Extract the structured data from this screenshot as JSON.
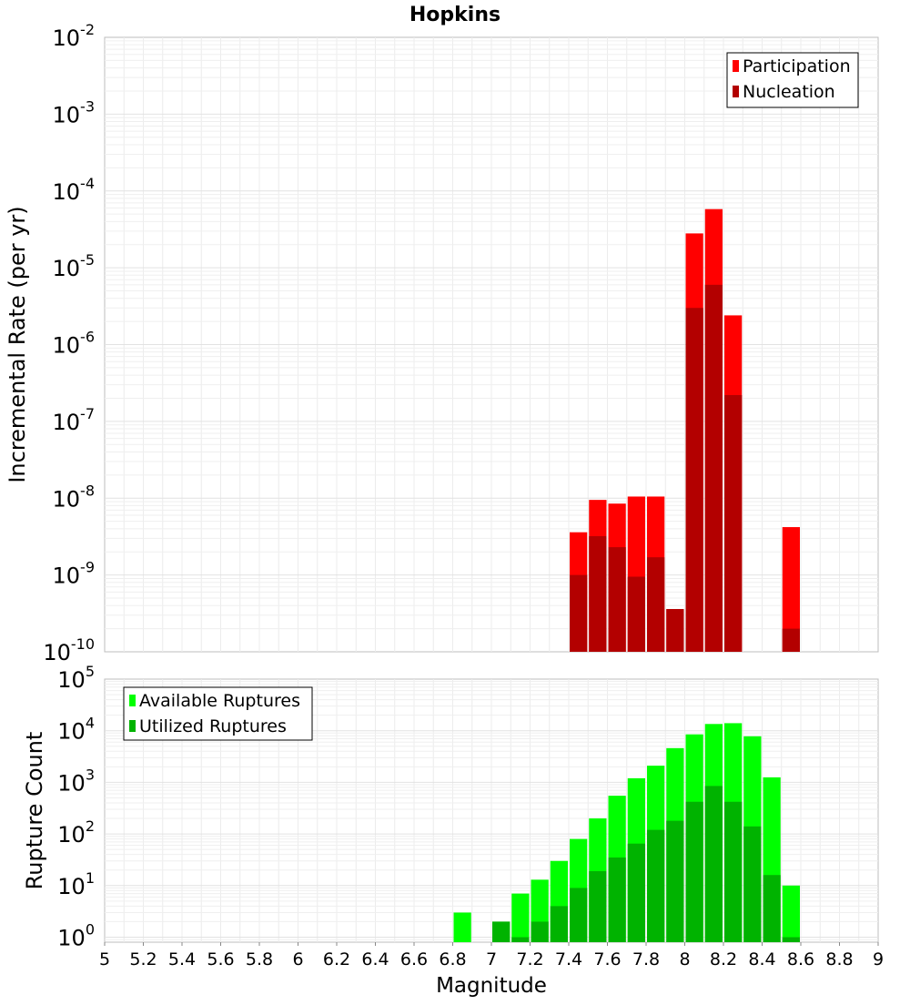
{
  "chart_data": [
    {
      "type": "bar",
      "title": "Hopkins",
      "ylabel": "Incremental Rate (per yr)",
      "xlim": [
        5,
        9
      ],
      "ylim": [
        1e-10,
        0.01
      ],
      "yscale": "log",
      "grid": true,
      "legend_position": "top-right",
      "y_tick_labels": [
        {
          "base": "10",
          "exp": "-10"
        },
        {
          "base": "10",
          "exp": "-9"
        },
        {
          "base": "10",
          "exp": "-8"
        },
        {
          "base": "10",
          "exp": "-7"
        },
        {
          "base": "10",
          "exp": "-6"
        },
        {
          "base": "10",
          "exp": "-5"
        },
        {
          "base": "10",
          "exp": "-4"
        },
        {
          "base": "10",
          "exp": "-3"
        },
        {
          "base": "10",
          "exp": "-2"
        }
      ],
      "series": [
        {
          "name": "Participation",
          "color": "#ff0000",
          "x": [
            7.45,
            7.55,
            7.65,
            7.75,
            7.85,
            7.95,
            8.05,
            8.15,
            8.25,
            8.55
          ],
          "values": [
            3.6e-09,
            9.5e-09,
            8.5e-09,
            1.05e-08,
            1.05e-08,
            3.6e-10,
            2.8e-05,
            5.8e-05,
            2.4e-06,
            4.2e-09
          ]
        },
        {
          "name": "Nucleation",
          "color": "#b30000",
          "x": [
            7.45,
            7.55,
            7.65,
            7.75,
            7.85,
            7.95,
            8.05,
            8.15,
            8.25,
            8.55
          ],
          "values": [
            1e-09,
            3.2e-09,
            2.3e-09,
            9.5e-10,
            1.7e-09,
            3.6e-10,
            3e-06,
            6e-06,
            2.2e-07,
            2e-10
          ]
        }
      ]
    },
    {
      "type": "bar",
      "xlabel": "Magnitude",
      "ylabel": "Rupture Count",
      "xlim": [
        5,
        9
      ],
      "ylim": [
        0.8,
        100000.0
      ],
      "yscale": "log",
      "grid": true,
      "legend_position": "top-left",
      "x_tick_labels": [
        "5",
        "5.2",
        "5.4",
        "5.6",
        "5.8",
        "6",
        "6.2",
        "6.4",
        "6.6",
        "6.8",
        "7",
        "7.2",
        "7.4",
        "7.6",
        "7.8",
        "8",
        "8.2",
        "8.4",
        "8.6",
        "8.8",
        "9"
      ],
      "y_tick_labels": [
        {
          "base": "10",
          "exp": "0"
        },
        {
          "base": "10",
          "exp": "1"
        },
        {
          "base": "10",
          "exp": "2"
        },
        {
          "base": "10",
          "exp": "3"
        },
        {
          "base": "10",
          "exp": "4"
        },
        {
          "base": "10",
          "exp": "5"
        }
      ],
      "series": [
        {
          "name": "Available Ruptures",
          "color": "#00ff00",
          "x": [
            6.85,
            7.05,
            7.15,
            7.25,
            7.35,
            7.45,
            7.55,
            7.65,
            7.75,
            7.85,
            7.95,
            8.05,
            8.15,
            8.25,
            8.35,
            8.45,
            8.55
          ],
          "values": [
            3,
            2,
            7,
            13,
            30,
            80,
            200,
            550,
            1200,
            2100,
            4600,
            8500,
            13500,
            14000,
            7800,
            1250,
            10
          ]
        },
        {
          "name": "Utilized Ruptures",
          "color": "#00b300",
          "x": [
            6.85,
            7.05,
            7.15,
            7.25,
            7.35,
            7.45,
            7.55,
            7.65,
            7.75,
            7.85,
            7.95,
            8.05,
            8.15,
            8.25,
            8.35,
            8.45,
            8.55
          ],
          "values": [
            0,
            2,
            1,
            2,
            4,
            9,
            19,
            35,
            65,
            120,
            180,
            420,
            850,
            420,
            140,
            16,
            1
          ]
        }
      ]
    }
  ]
}
